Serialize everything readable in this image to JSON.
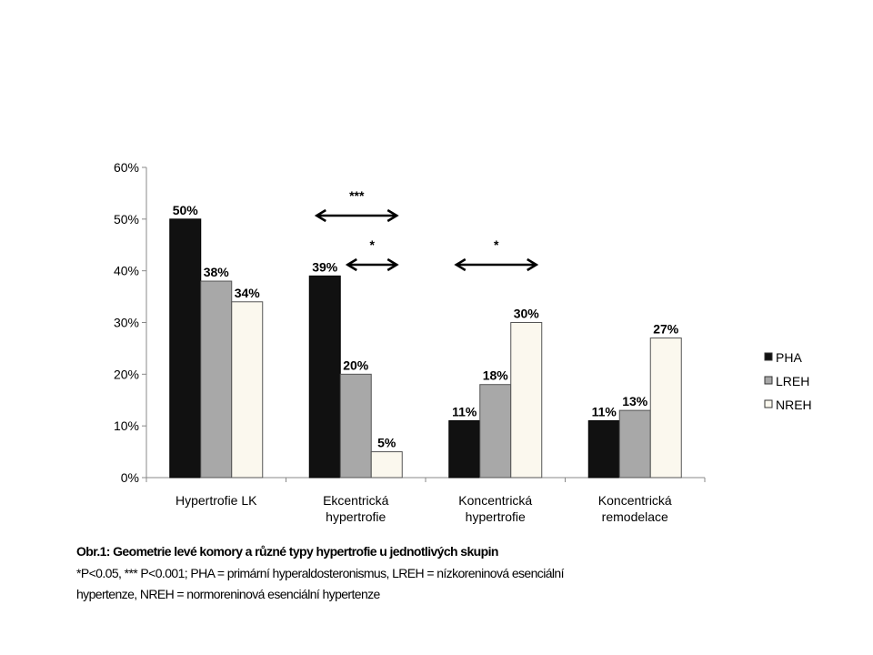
{
  "chart_data": {
    "type": "bar",
    "categories": [
      "Hypertrofie LK",
      "Ekcentrická hypertrofie",
      "Koncentrická hypertrofie",
      "Koncentrická remodelace"
    ],
    "category_lines": [
      [
        "Hypertrofie LK"
      ],
      [
        "Ekcentrická",
        "hypertrofie"
      ],
      [
        "Koncentrická",
        "hypertrofie"
      ],
      [
        "Koncentrická",
        "remodelace"
      ]
    ],
    "series": [
      {
        "name": "PHA",
        "values": [
          50,
          39,
          11,
          11
        ],
        "labels": [
          "50%",
          "39%",
          "11%",
          "11%"
        ],
        "color": "#111111"
      },
      {
        "name": "LREH",
        "values": [
          38,
          20,
          18,
          13
        ],
        "labels": [
          "38%",
          "20%",
          "18%",
          "13%"
        ],
        "color": "#a8a8a8"
      },
      {
        "name": "NREH",
        "values": [
          34,
          5,
          30,
          27
        ],
        "labels": [
          "34%",
          "5%",
          "30%",
          "27%"
        ],
        "color": "#fbf8ee"
      }
    ],
    "yticks": [
      "0%",
      "10%",
      "20%",
      "30%",
      "40%",
      "50%",
      "60%"
    ],
    "ylim": [
      0,
      60
    ],
    "legend": "right",
    "annotations": [
      {
        "category": 1,
        "from": "PHA",
        "to": "NREH",
        "label": "***"
      },
      {
        "category": 1,
        "from": "LREH",
        "to": "NREH",
        "label": "*"
      },
      {
        "category": 2,
        "from": "PHA",
        "to": "NREH",
        "label": "*"
      }
    ]
  },
  "caption": {
    "title": "Obr.1:  Geometrie levé komory a různé typy hypertrofie u jednotlivých skupin",
    "note_line1": "*P<0.05, *** P<0.001; PHA = primární hyperaldosteronismus, LREH = nízkoreninová esenciální",
    "note_line2": "hypertenze, NREH = normoreninová esenciální hypertenze"
  }
}
